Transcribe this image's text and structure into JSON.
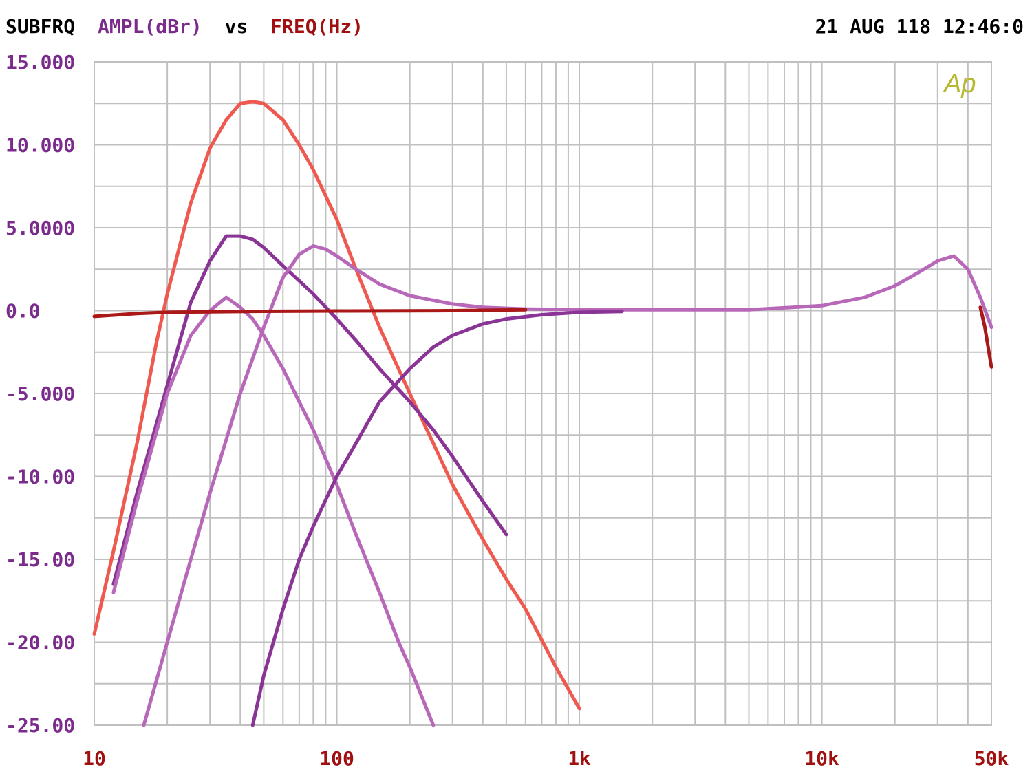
{
  "header": {
    "title_prefix": "SUBFRQ",
    "y_quantity": "AMPL(dBr)",
    "vs": "vs",
    "x_quantity": "FREQ(Hz)",
    "timestamp": "21 AUG 118 12:46:0",
    "logo_text": "Ap"
  },
  "colors": {
    "background": "#ffffff",
    "grid": "#c0c0c0",
    "title_black": "#000000",
    "y_axis_text": "#7b2b8c",
    "x_axis_text": "#a01010",
    "logo": "#b8b830",
    "coral": "#ef5a50",
    "purple": "#8a3596",
    "orchid": "#b868b8",
    "darkred": "#aa1818"
  },
  "chart_data": {
    "type": "line",
    "xscale": "log",
    "xlim": [
      10,
      50000
    ],
    "ylim": [
      -25,
      15
    ],
    "grid": true,
    "xlabel": "FREQ(Hz)",
    "ylabel": "AMPL(dBr)",
    "y_ticks": [
      {
        "value": 15,
        "label": "15.000"
      },
      {
        "value": 10,
        "label": "10.000"
      },
      {
        "value": 5,
        "label": "5.0000"
      },
      {
        "value": 0,
        "label": "0.0"
      },
      {
        "value": -5,
        "label": "-5.000"
      },
      {
        "value": -10,
        "label": "-10.00"
      },
      {
        "value": -15,
        "label": "-15.00"
      },
      {
        "value": -20,
        "label": "-20.00"
      },
      {
        "value": -25,
        "label": "-25.00"
      }
    ],
    "x_ticks": [
      {
        "value": 10,
        "label": "10"
      },
      {
        "value": 100,
        "label": "100"
      },
      {
        "value": 1000,
        "label": "1k"
      },
      {
        "value": 10000,
        "label": "10k"
      },
      {
        "value": 50000,
        "label": "50k"
      }
    ],
    "series": [
      {
        "color": "#ef5a50",
        "points": [
          [
            10,
            -19.5
          ],
          [
            12,
            -14.5
          ],
          [
            15,
            -8
          ],
          [
            18,
            -2
          ],
          [
            20,
            1
          ],
          [
            25,
            6.5
          ],
          [
            30,
            9.8
          ],
          [
            35,
            11.5
          ],
          [
            40,
            12.5
          ],
          [
            45,
            12.6
          ],
          [
            50,
            12.5
          ],
          [
            60,
            11.5
          ],
          [
            70,
            10
          ],
          [
            80,
            8.5
          ],
          [
            100,
            5.5
          ],
          [
            120,
            2.5
          ],
          [
            150,
            -1
          ],
          [
            200,
            -5
          ],
          [
            250,
            -8
          ],
          [
            300,
            -10.5
          ],
          [
            400,
            -13.8
          ],
          [
            500,
            -16.2
          ],
          [
            600,
            -18
          ],
          [
            800,
            -21.5
          ],
          [
            1000,
            -24
          ]
        ]
      },
      {
        "color": "#8a3596",
        "points": [
          [
            12,
            -16.5
          ],
          [
            15,
            -11
          ],
          [
            20,
            -4.5
          ],
          [
            25,
            0.5
          ],
          [
            30,
            3
          ],
          [
            35,
            4.5
          ],
          [
            40,
            4.5
          ],
          [
            45,
            4.3
          ],
          [
            50,
            3.8
          ],
          [
            60,
            2.7
          ],
          [
            70,
            1.8
          ],
          [
            80,
            1
          ],
          [
            100,
            -0.5
          ],
          [
            120,
            -1.8
          ],
          [
            150,
            -3.5
          ],
          [
            200,
            -5.5
          ],
          [
            250,
            -7.2
          ],
          [
            300,
            -8.8
          ],
          [
            400,
            -11.5
          ],
          [
            500,
            -13.5
          ]
        ]
      },
      {
        "color": "#b868b8",
        "points": [
          [
            12,
            -17
          ],
          [
            15,
            -11.5
          ],
          [
            20,
            -5
          ],
          [
            25,
            -1.5
          ],
          [
            30,
            0
          ],
          [
            35,
            0.8
          ],
          [
            40,
            0.2
          ],
          [
            45,
            -0.5
          ],
          [
            50,
            -1.5
          ],
          [
            60,
            -3.5
          ],
          [
            70,
            -5.5
          ],
          [
            80,
            -7.2
          ],
          [
            100,
            -10.5
          ],
          [
            120,
            -13.5
          ],
          [
            150,
            -17
          ],
          [
            180,
            -20
          ],
          [
            200,
            -21.5
          ],
          [
            250,
            -25
          ]
        ]
      },
      {
        "color": "#b868b8",
        "points": [
          [
            16,
            -25
          ],
          [
            20,
            -20
          ],
          [
            25,
            -15
          ],
          [
            30,
            -11
          ],
          [
            40,
            -5
          ],
          [
            50,
            -1
          ],
          [
            60,
            2
          ],
          [
            70,
            3.4
          ],
          [
            80,
            3.9
          ],
          [
            90,
            3.7
          ],
          [
            100,
            3.3
          ],
          [
            120,
            2.5
          ],
          [
            150,
            1.6
          ],
          [
            200,
            0.9
          ],
          [
            300,
            0.4
          ],
          [
            400,
            0.2
          ],
          [
            600,
            0.1
          ],
          [
            1000,
            0.05
          ],
          [
            2000,
            0.05
          ],
          [
            5000,
            0.05
          ],
          [
            10000,
            0.3
          ],
          [
            15000,
            0.8
          ],
          [
            20000,
            1.5
          ],
          [
            25000,
            2.3
          ],
          [
            30000,
            3
          ],
          [
            35000,
            3.3
          ],
          [
            40000,
            2.5
          ],
          [
            45000,
            0.8
          ],
          [
            50000,
            -1
          ]
        ]
      },
      {
        "color": "#8a3596",
        "points": [
          [
            45,
            -25
          ],
          [
            50,
            -22
          ],
          [
            60,
            -18
          ],
          [
            70,
            -15
          ],
          [
            80,
            -13
          ],
          [
            100,
            -10
          ],
          [
            120,
            -8
          ],
          [
            150,
            -5.5
          ],
          [
            200,
            -3.5
          ],
          [
            250,
            -2.2
          ],
          [
            300,
            -1.5
          ],
          [
            400,
            -0.8
          ],
          [
            500,
            -0.5
          ],
          [
            700,
            -0.25
          ],
          [
            1000,
            -0.1
          ],
          [
            1500,
            -0.05
          ]
        ]
      },
      {
        "color": "#aa1818",
        "points": [
          [
            10,
            -0.35
          ],
          [
            15,
            -0.18
          ],
          [
            20,
            -0.1
          ],
          [
            50,
            -0.04
          ],
          [
            100,
            -0.02
          ],
          [
            300,
            0
          ],
          [
            600,
            0.05
          ]
        ]
      },
      {
        "color": "#aa1818",
        "points": [
          [
            45000,
            0.2
          ],
          [
            47000,
            -1
          ],
          [
            50000,
            -3.4
          ]
        ]
      }
    ]
  }
}
